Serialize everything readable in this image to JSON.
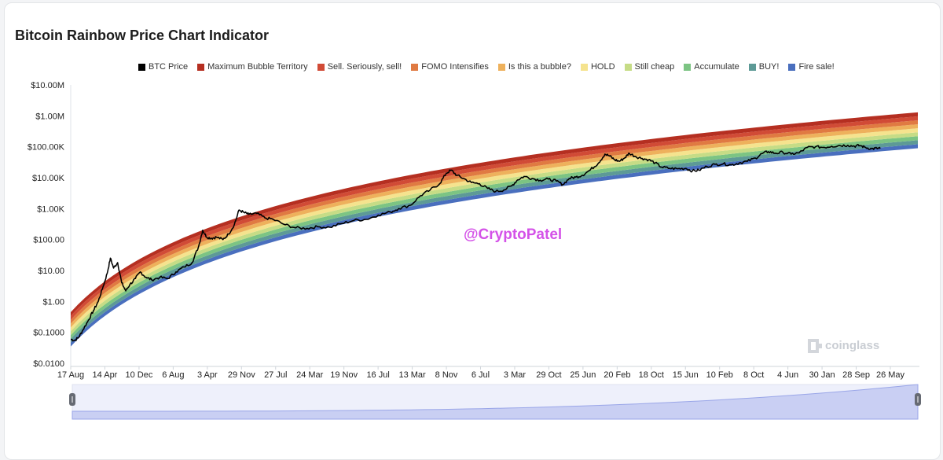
{
  "title": "Bitcoin Rainbow Price Chart Indicator",
  "watermark": "@CryptoPatel",
  "brand": "coinglass",
  "chart_data": {
    "type": "area",
    "y_scale": "log",
    "y_ticks": [
      "$0.0100",
      "$0.1000",
      "$1.00",
      "$10.00",
      "$100.00",
      "$1.00K",
      "$10.00K",
      "$100.00K",
      "$1.00M",
      "$10.00M"
    ],
    "y_tick_values": [
      0.01,
      0.1,
      1,
      10,
      100,
      1000,
      10000,
      100000,
      1000000,
      10000000
    ],
    "x_ticks": [
      "17 Aug",
      "14 Apr",
      "10 Dec",
      "6 Aug",
      "3 Apr",
      "29 Nov",
      "27 Jul",
      "24 Mar",
      "19 Nov",
      "16 Jul",
      "13 Mar",
      "8 Nov",
      "6 Jul",
      "3 Mar",
      "29 Oct",
      "25 Jun",
      "20 Feb",
      "18 Oct",
      "15 Jun",
      "10 Feb",
      "8 Oct",
      "4 Jun",
      "30 Jan",
      "28 Sep",
      "26 May"
    ],
    "legend": [
      {
        "name": "BTC Price",
        "color": "#000000"
      },
      {
        "name": "Maximum Bubble Territory",
        "color": "#b52f21"
      },
      {
        "name": "Sell. Seriously, sell!",
        "color": "#d14b36"
      },
      {
        "name": "FOMO Intensifies",
        "color": "#e07a42"
      },
      {
        "name": "Is this a bubble?",
        "color": "#eeb15c"
      },
      {
        "name": "HOLD",
        "color": "#f5e38e"
      },
      {
        "name": "Still cheap",
        "color": "#c6dc86"
      },
      {
        "name": "Accumulate",
        "color": "#7cc483"
      },
      {
        "name": "BUY!",
        "color": "#5d9a96"
      },
      {
        "name": "Fire sale!",
        "color": "#4a6fbe"
      }
    ],
    "band_bottom_start": 0.035,
    "band_bottom_end": 90000,
    "band_top_start": 0.45,
    "band_top_end": 1300000,
    "btc_price_series": {
      "name": "BTC Price",
      "points": [
        [
          0.0,
          0.06
        ],
        [
          0.005,
          0.055
        ],
        [
          0.01,
          0.07
        ],
        [
          0.015,
          0.12
        ],
        [
          0.022,
          0.25
        ],
        [
          0.028,
          0.5
        ],
        [
          0.034,
          1.0
        ],
        [
          0.04,
          3.0
        ],
        [
          0.045,
          8.0
        ],
        [
          0.049,
          25.0
        ],
        [
          0.053,
          12.0
        ],
        [
          0.058,
          18.0
        ],
        [
          0.063,
          4.0
        ],
        [
          0.068,
          2.2
        ],
        [
          0.073,
          3.5
        ],
        [
          0.08,
          5.5
        ],
        [
          0.086,
          9.0
        ],
        [
          0.093,
          6.0
        ],
        [
          0.1,
          5.0
        ],
        [
          0.11,
          6.0
        ],
        [
          0.12,
          5.5
        ],
        [
          0.13,
          9.0
        ],
        [
          0.14,
          13.0
        ],
        [
          0.15,
          18.0
        ],
        [
          0.158,
          60.0
        ],
        [
          0.163,
          200.0
        ],
        [
          0.168,
          120.0
        ],
        [
          0.174,
          110.0
        ],
        [
          0.18,
          120.0
        ],
        [
          0.188,
          100.0
        ],
        [
          0.195,
          150.0
        ],
        [
          0.202,
          300.0
        ],
        [
          0.208,
          900.0
        ],
        [
          0.214,
          750.0
        ],
        [
          0.22,
          650.0
        ],
        [
          0.23,
          700.0
        ],
        [
          0.24,
          500.0
        ],
        [
          0.25,
          450.0
        ],
        [
          0.265,
          300.0
        ],
        [
          0.278,
          240.0
        ],
        [
          0.292,
          230.0
        ],
        [
          0.305,
          260.0
        ],
        [
          0.32,
          250.0
        ],
        [
          0.335,
          330.0
        ],
        [
          0.35,
          420.0
        ],
        [
          0.365,
          450.0
        ],
        [
          0.38,
          620.0
        ],
        [
          0.395,
          780.0
        ],
        [
          0.405,
          1000.0
        ],
        [
          0.42,
          1300.0
        ],
        [
          0.432,
          2600.0
        ],
        [
          0.444,
          4000.0
        ],
        [
          0.456,
          6500.0
        ],
        [
          0.464,
          14000.0
        ],
        [
          0.47,
          17500.0
        ],
        [
          0.477,
          12000.0
        ],
        [
          0.485,
          9500.0
        ],
        [
          0.495,
          7000.0
        ],
        [
          0.505,
          6400.0
        ],
        [
          0.515,
          4500.0
        ],
        [
          0.525,
          3600.0
        ],
        [
          0.535,
          4000.0
        ],
        [
          0.545,
          5500.0
        ],
        [
          0.552,
          8500.0
        ],
        [
          0.56,
          11000.0
        ],
        [
          0.57,
          9500.0
        ],
        [
          0.58,
          8300.0
        ],
        [
          0.59,
          9000.0
        ],
        [
          0.6,
          7800.0
        ],
        [
          0.608,
          6000.0
        ],
        [
          0.616,
          9500.0
        ],
        [
          0.624,
          10500.0
        ],
        [
          0.632,
          12000.0
        ],
        [
          0.642,
          18000.0
        ],
        [
          0.652,
          30000.0
        ],
        [
          0.66,
          58000.0
        ],
        [
          0.666,
          50000.0
        ],
        [
          0.672,
          38000.0
        ],
        [
          0.678,
          34000.0
        ],
        [
          0.685,
          45000.0
        ],
        [
          0.69,
          62000.0
        ],
        [
          0.698,
          48000.0
        ],
        [
          0.706,
          42000.0
        ],
        [
          0.714,
          38000.0
        ],
        [
          0.722,
          30000.0
        ],
        [
          0.73,
          22000.0
        ],
        [
          0.74,
          20000.0
        ],
        [
          0.75,
          19500.0
        ],
        [
          0.76,
          20000.0
        ],
        [
          0.768,
          16500.0
        ],
        [
          0.776,
          17500.0
        ],
        [
          0.786,
          23000.0
        ],
        [
          0.796,
          27000.0
        ],
        [
          0.806,
          28000.0
        ],
        [
          0.816,
          26000.0
        ],
        [
          0.826,
          30000.0
        ],
        [
          0.836,
          34000.0
        ],
        [
          0.846,
          43000.0
        ],
        [
          0.854,
          60000.0
        ],
        [
          0.862,
          70000.0
        ],
        [
          0.87,
          62000.0
        ],
        [
          0.88,
          66000.0
        ],
        [
          0.89,
          58000.0
        ],
        [
          0.9,
          64000.0
        ],
        [
          0.91,
          95000.0
        ],
        [
          0.92,
          100000.0
        ],
        [
          0.93,
          96000.0
        ],
        [
          0.94,
          104000.0
        ],
        [
          0.95,
          110000.0
        ],
        [
          0.96,
          112000.0
        ],
        [
          0.968,
          105000.0
        ],
        [
          0.975,
          110000.0
        ],
        [
          0.982,
          95000.0
        ],
        [
          0.99,
          86000.0
        ],
        [
          0.996,
          89000.0
        ],
        [
          1.0,
          87000.0
        ]
      ]
    }
  }
}
